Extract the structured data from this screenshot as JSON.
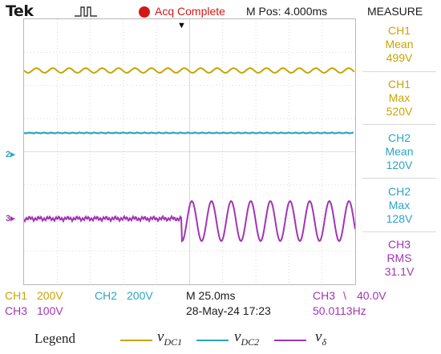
{
  "header": {
    "brand": "Tek",
    "trigger_icon": "trigger-pulse-icon",
    "status_indicator_color": "#d21919",
    "acquisition_status": "Acq Complete",
    "position": "M Pos: 4.000ms",
    "measure_title": "MEASURE"
  },
  "measurements": [
    {
      "channel": "CH1",
      "type": "Mean",
      "value": "499V",
      "color": "#c8a400"
    },
    {
      "channel": "CH1",
      "type": "Max",
      "value": "520V",
      "color": "#c8a400"
    },
    {
      "channel": "CH2",
      "type": "Mean",
      "value": "120V",
      "color": "#2aa5c4"
    },
    {
      "channel": "CH2",
      "type": "Max",
      "value": "128V",
      "color": "#2aa5c4"
    },
    {
      "channel": "CH3",
      "type": "RMS",
      "value": "31.1V",
      "color": "#a235b4"
    }
  ],
  "channel_markers": {
    "ch2": "2",
    "ch3": "3"
  },
  "settings": {
    "ch1_label": "CH1",
    "ch1_scale": "200V",
    "ch2_label": "CH2",
    "ch2_scale": "200V",
    "ch3_label": "CH3",
    "ch3_scale": "100V",
    "timebase": "M 25.0ms",
    "datetime": "28-May-24 17:23",
    "trigger_source": "CH3",
    "trigger_level": "40.0V",
    "frequency": "50.0113Hz"
  },
  "legend": {
    "label": "Legend",
    "items": [
      {
        "base": "v",
        "sub": "DC1",
        "color": "#c8a400"
      },
      {
        "base": "v",
        "sub": "DC2",
        "color": "#2aa5c4"
      },
      {
        "base": "v",
        "sub": "δ",
        "color": "#a235b4"
      }
    ]
  },
  "colors": {
    "ch1": "#c8a400",
    "ch2": "#2aa5c4",
    "ch3": "#a235b4",
    "grid": "#bdbdbd"
  }
}
